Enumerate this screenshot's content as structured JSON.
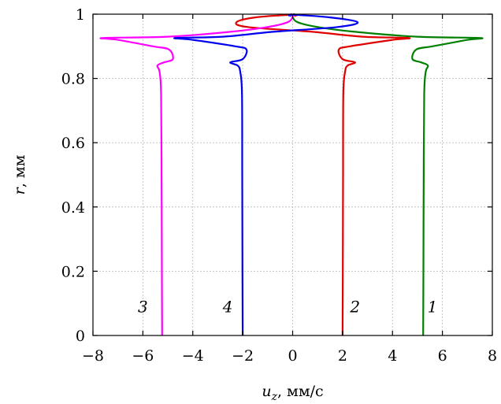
{
  "chart_data": {
    "type": "line",
    "xlabel_main": "u",
    "xlabel_sub": "z",
    "xlabel_unit": ", мм/с",
    "ylabel_main": "r",
    "ylabel_unit": ", мм",
    "xlim": [
      -8,
      8
    ],
    "ylim": [
      0,
      1
    ],
    "xticks": [
      -8,
      -6,
      -4,
      -2,
      0,
      2,
      4,
      6,
      8
    ],
    "xtick_labels": [
      "−8",
      "−6",
      "−4",
      "−2",
      "0",
      "2",
      "4",
      "6",
      "8"
    ],
    "yticks": [
      0,
      0.2,
      0.4,
      0.6,
      0.8,
      1
    ],
    "ytick_labels": [
      "0",
      "0.2",
      "0.4",
      "0.6",
      "0.8",
      "1"
    ],
    "grid": true,
    "series": [
      {
        "name": "1",
        "color": "#008000",
        "label_pos": [
          5.6,
          0.09
        ],
        "points": [
          [
            5.23,
            0
          ],
          [
            5.24,
            0.2
          ],
          [
            5.25,
            0.5
          ],
          [
            5.27,
            0.75
          ],
          [
            5.33,
            0.82
          ],
          [
            5.42,
            0.84
          ],
          [
            5.15,
            0.85
          ],
          [
            4.8,
            0.86
          ],
          [
            4.95,
            0.89
          ],
          [
            5.6,
            0.9
          ],
          [
            7.0,
            0.92
          ],
          [
            7.5,
            0.926
          ],
          [
            5.0,
            0.93
          ],
          [
            2.5,
            0.945
          ],
          [
            1.0,
            0.96
          ],
          [
            0.2,
            0.975
          ],
          [
            0.0,
            0.992
          ],
          [
            0.05,
            1.0
          ],
          [
            0.15,
            0.995
          ]
        ]
      },
      {
        "name": "2",
        "color": "#e00000",
        "label_pos": [
          2.5,
          0.09
        ],
        "points": [
          [
            2.0,
            0
          ],
          [
            2.01,
            0.2
          ],
          [
            2.02,
            0.5
          ],
          [
            2.03,
            0.75
          ],
          [
            2.1,
            0.82
          ],
          [
            2.2,
            0.84
          ],
          [
            2.5,
            0.85
          ],
          [
            2.0,
            0.86
          ],
          [
            1.85,
            0.89
          ],
          [
            2.3,
            0.9
          ],
          [
            4.0,
            0.92
          ],
          [
            4.65,
            0.926
          ],
          [
            2.8,
            0.93
          ],
          [
            0.8,
            0.945
          ],
          [
            -1.8,
            0.96
          ],
          [
            -2.25,
            0.975
          ],
          [
            -1.5,
            0.99
          ],
          [
            0.0,
            0.998
          ],
          [
            0.1,
            0.993
          ]
        ]
      },
      {
        "name": "3",
        "color": "#ff00ff",
        "label_pos": [
          -6.0,
          0.09
        ],
        "points": [
          [
            -5.23,
            0
          ],
          [
            -5.24,
            0.2
          ],
          [
            -5.25,
            0.5
          ],
          [
            -5.27,
            0.75
          ],
          [
            -5.33,
            0.82
          ],
          [
            -5.42,
            0.84
          ],
          [
            -5.15,
            0.85
          ],
          [
            -4.8,
            0.86
          ],
          [
            -4.95,
            0.89
          ],
          [
            -5.6,
            0.9
          ],
          [
            -7.0,
            0.92
          ],
          [
            -7.6,
            0.926
          ],
          [
            -5.0,
            0.93
          ],
          [
            -2.5,
            0.945
          ],
          [
            -1.0,
            0.96
          ],
          [
            -0.2,
            0.975
          ],
          [
            0.0,
            0.992
          ],
          [
            -0.05,
            1.0
          ],
          [
            -0.15,
            0.995
          ]
        ]
      },
      {
        "name": "4",
        "color": "#0000ee",
        "label_pos": [
          -2.6,
          0.09
        ],
        "points": [
          [
            -2.0,
            0
          ],
          [
            -2.01,
            0.2
          ],
          [
            -2.02,
            0.5
          ],
          [
            -2.03,
            0.75
          ],
          [
            -2.1,
            0.82
          ],
          [
            -2.2,
            0.84
          ],
          [
            -2.5,
            0.85
          ],
          [
            -2.0,
            0.86
          ],
          [
            -1.85,
            0.89
          ],
          [
            -2.3,
            0.9
          ],
          [
            -4.0,
            0.92
          ],
          [
            -4.7,
            0.926
          ],
          [
            -2.8,
            0.93
          ],
          [
            -0.8,
            0.945
          ],
          [
            1.8,
            0.96
          ],
          [
            2.6,
            0.975
          ],
          [
            1.5,
            0.99
          ],
          [
            0.0,
            0.998
          ],
          [
            -0.1,
            0.993
          ]
        ]
      }
    ]
  }
}
